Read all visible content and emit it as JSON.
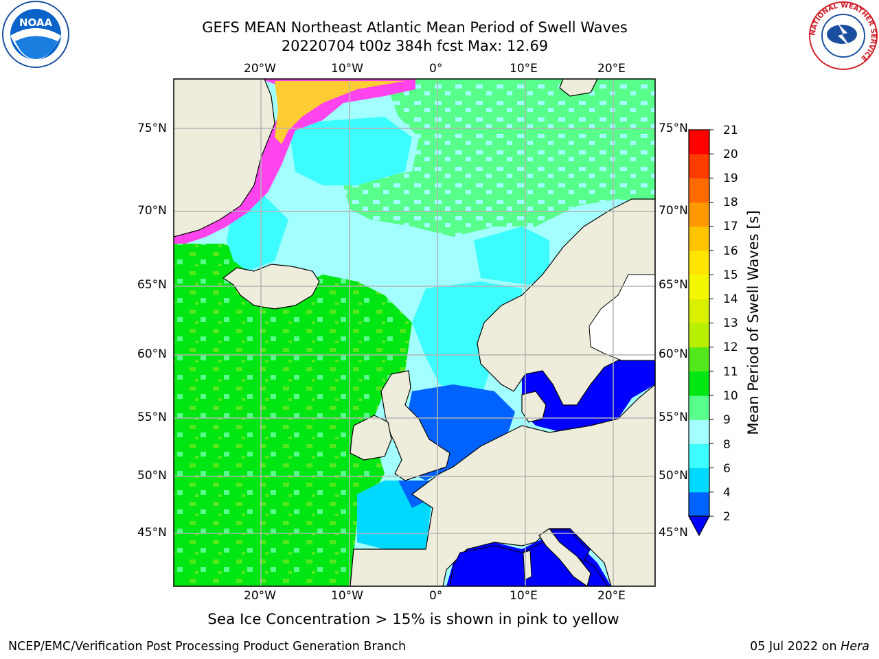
{
  "title": {
    "line1": "GEFS MEAN Northeast Atlantic Mean Period of Swell Waves",
    "line2": "20220704 t00z 384h fcst   Max: 12.69"
  },
  "axes": {
    "lon_labels": [
      "20°W",
      "10°W",
      "0°",
      "10°E",
      "20°E"
    ],
    "lat_labels": [
      "75°N",
      "70°N",
      "65°N",
      "60°N",
      "55°N",
      "50°N",
      "45°N"
    ]
  },
  "colorbar": {
    "label": "Mean Period of Swell Waves [s]",
    "ticks": [
      "2",
      "4",
      "6",
      "8",
      "9",
      "10",
      "11",
      "12",
      "13",
      "14",
      "15",
      "16",
      "17",
      "18",
      "19",
      "20",
      "21"
    ],
    "colors": [
      "#0062ff",
      "#00d9ff",
      "#3dfcff",
      "#a3ffff",
      "#58ff8a",
      "#00e612",
      "#52e81c",
      "#b8f000",
      "#d9f000",
      "#f5f700",
      "#ffe500",
      "#ffc400",
      "#ff9900",
      "#ff6a00",
      "#ff3c00",
      "#ff0000"
    ],
    "underflow_color": "#0000ff"
  },
  "colors": {
    "land": "#eeeddc",
    "grid": "#b3b3b3",
    "ice_edge": "#ff44ee",
    "ice_inner": "#ffcc33"
  },
  "subtitle": "Sea Ice Concentration > 15% is shown in pink to yellow",
  "footer": {
    "left": "NCEP/EMC/Verification Post Processing Product Generation Branch",
    "date": "05 Jul 2022 on ",
    "host": "Hera"
  },
  "logos": {
    "noaa": "NOAA",
    "nws_ring": "NATIONAL WEATHER SERVICE"
  }
}
